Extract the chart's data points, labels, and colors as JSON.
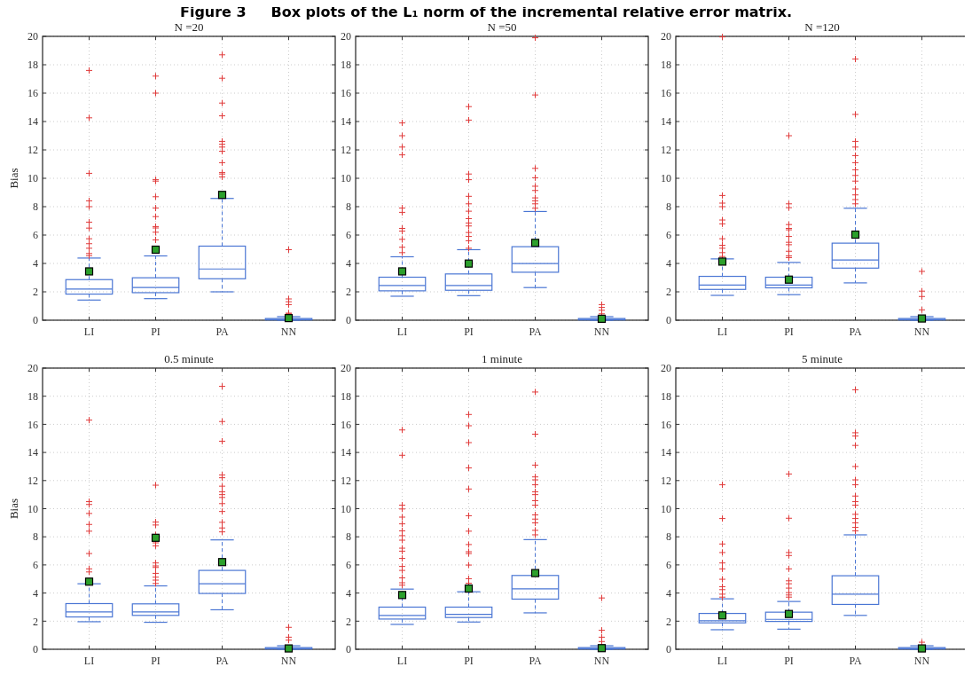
{
  "chart_data": [
    {
      "type": "box",
      "title": "N =20",
      "ylabel": "Bias",
      "annotations": [
        "Figure 3     Box plots of the L₁ norm of the incremental relative error matrix."
      ],
      "categories": [
        "LI",
        "PI",
        "PA",
        "NN"
      ],
      "ylim": [
        0,
        20
      ],
      "yticks": [
        0,
        2,
        4,
        6,
        8,
        10,
        12,
        14,
        16,
        18,
        20
      ],
      "grid": true,
      "marker": "cross",
      "series": [
        {
          "color": "#4a76d4",
          "boxes": [
            {
              "low": 1.42,
              "q1": 1.84,
              "median": 2.19,
              "q3": 2.86,
              "high": 4.38,
              "mean": 3.44,
              "outliers": [
                17.6,
                14.26,
                10.35,
                8.41,
                8.0,
                6.91,
                6.49,
                5.74,
                5.39,
                5.07,
                4.7,
                4.55
              ]
            },
            {
              "low": 1.52,
              "q1": 1.94,
              "median": 2.3,
              "q3": 2.99,
              "high": 4.53,
              "mean": 4.97,
              "outliers": [
                17.2,
                16.0,
                9.9,
                9.8,
                8.7,
                7.9,
                7.3,
                6.6,
                6.5,
                6.2,
                5.66
              ]
            },
            {
              "low": 2.0,
              "q1": 2.92,
              "median": 3.61,
              "q3": 5.22,
              "high": 8.58,
              "mean": 8.83,
              "outliers": [
                18.7,
                17.05,
                15.3,
                14.4,
                12.6,
                12.4,
                12.2,
                11.9,
                11.1,
                10.4,
                10.3,
                10.1
              ]
            },
            {
              "low": 0,
              "q1": 0.02,
              "median": 0.05,
              "q3": 0.12,
              "high": 0.25,
              "mean": 0.15,
              "outliers": [
                4.97,
                1.5,
                1.3,
                1.1,
                0.5,
                0.45
              ]
            }
          ]
        }
      ]
    },
    {
      "type": "box",
      "title": "N =50",
      "categories": [
        "LI",
        "PI",
        "PA",
        "NN"
      ],
      "ylim": [
        0,
        20
      ],
      "yticks": [
        0,
        2,
        4,
        6,
        8,
        10,
        12,
        14,
        16,
        18,
        20
      ],
      "grid": true,
      "marker": "cross",
      "series": [
        {
          "color": "#4a76d4",
          "boxes": [
            {
              "low": 1.69,
              "q1": 2.07,
              "median": 2.44,
              "q3": 3.03,
              "high": 4.47,
              "mean": 3.44,
              "outliers": [
                13.9,
                13.0,
                12.2,
                11.65,
                7.9,
                7.6,
                6.47,
                6.28,
                5.7,
                5.14,
                4.76
              ]
            },
            {
              "low": 1.73,
              "q1": 2.11,
              "median": 2.44,
              "q3": 3.26,
              "high": 4.97,
              "mean": 3.99,
              "outliers": [
                15.05,
                14.1,
                10.3,
                9.9,
                8.73,
                8.2,
                7.68,
                7.16,
                6.85,
                6.64,
                6.18,
                5.9,
                5.6,
                5.07
              ]
            },
            {
              "low": 2.3,
              "q1": 3.38,
              "median": 3.99,
              "q3": 5.18,
              "high": 7.66,
              "mean": 5.45,
              "outliers": [
                19.9,
                15.87,
                10.7,
                10.04,
                9.44,
                9.14,
                8.62,
                8.41,
                8.2,
                7.89
              ]
            },
            {
              "low": 0,
              "q1": 0.02,
              "median": 0.05,
              "q3": 0.12,
              "high": 0.25,
              "mean": 0.1,
              "outliers": [
                1.1,
                0.9,
                0.7,
                0.45
              ]
            }
          ]
        }
      ]
    },
    {
      "type": "box",
      "title": "N =120",
      "categories": [
        "LI",
        "PI",
        "PA",
        "NN"
      ],
      "ylim": [
        0,
        20
      ],
      "yticks": [
        0,
        2,
        4,
        6,
        8,
        10,
        12,
        14,
        16,
        18,
        20
      ],
      "grid": true,
      "marker": "cross",
      "series": [
        {
          "color": "#4a76d4",
          "boxes": [
            {
              "low": 1.75,
              "q1": 2.17,
              "median": 2.48,
              "q3": 3.09,
              "high": 4.32,
              "mean": 4.13,
              "outliers": [
                19.96,
                8.79,
                8.25,
                8.0,
                7.06,
                6.79,
                5.74,
                5.28,
                5.07,
                4.76,
                4.49
              ]
            },
            {
              "low": 1.8,
              "q1": 2.28,
              "median": 2.48,
              "q3": 3.03,
              "high": 4.07,
              "mean": 2.86,
              "outliers": [
                13.0,
                8.2,
                7.93,
                6.74,
                6.47,
                6.37,
                5.9,
                5.49,
                5.32,
                4.86,
                4.53,
                4.41
              ]
            },
            {
              "low": 2.63,
              "q1": 3.67,
              "median": 4.24,
              "q3": 5.43,
              "high": 7.89,
              "mean": 6.03,
              "outliers": [
                18.4,
                14.5,
                12.6,
                12.2,
                11.6,
                11.1,
                10.6,
                10.2,
                9.8,
                9.25,
                8.83,
                8.5,
                8.2
              ]
            },
            {
              "low": 0,
              "q1": 0.02,
              "median": 0.05,
              "q3": 0.12,
              "high": 0.25,
              "mean": 0.12,
              "outliers": [
                3.44,
                2.05,
                1.67,
                0.73
              ]
            }
          ]
        }
      ]
    },
    {
      "type": "box",
      "title": "0.5 minute",
      "ylabel": "Bias",
      "categories": [
        "LI",
        "PI",
        "PA",
        "NN"
      ],
      "ylim": [
        0,
        20
      ],
      "yticks": [
        0,
        2,
        4,
        6,
        8,
        10,
        12,
        14,
        16,
        18,
        20
      ],
      "grid": true,
      "marker": "cross",
      "series": [
        {
          "color": "#4a76d4",
          "boxes": [
            {
              "low": 1.96,
              "q1": 2.3,
              "median": 2.66,
              "q3": 3.25,
              "high": 4.66,
              "mean": 4.81,
              "outliers": [
                16.3,
                10.5,
                10.3,
                9.66,
                8.88,
                8.4,
                6.81,
                5.72,
                5.5
              ]
            },
            {
              "low": 1.92,
              "q1": 2.41,
              "median": 2.66,
              "q3": 3.23,
              "high": 4.51,
              "mean": 7.93,
              "outliers": [
                11.67,
                9.05,
                8.84,
                8.14,
                7.57,
                7.36,
                6.14,
                5.93,
                5.82,
                5.4,
                5.13,
                4.92,
                4.68
              ]
            },
            {
              "low": 2.81,
              "q1": 3.97,
              "median": 4.66,
              "q3": 5.61,
              "high": 7.78,
              "mean": 6.2,
              "outliers": [
                18.7,
                16.2,
                14.8,
                12.4,
                12.2,
                11.6,
                11.2,
                11.0,
                10.8,
                10.36,
                9.8,
                9.03,
                8.63,
                8.35
              ]
            },
            {
              "low": 0,
              "q1": 0.02,
              "median": 0.05,
              "q3": 0.12,
              "high": 0.25,
              "mean": 0.06,
              "outliers": [
                1.56,
                0.86,
                0.65
              ]
            }
          ]
        }
      ]
    },
    {
      "type": "box",
      "title": "1 minute",
      "categories": [
        "LI",
        "PI",
        "PA",
        "NN"
      ],
      "ylim": [
        0,
        20
      ],
      "yticks": [
        0,
        2,
        4,
        6,
        8,
        10,
        12,
        14,
        16,
        18,
        20
      ],
      "grid": true,
      "marker": "cross",
      "series": [
        {
          "color": "#4a76d4",
          "boxes": [
            {
              "low": 1.77,
              "q1": 2.15,
              "median": 2.4,
              "q3": 3.0,
              "high": 4.28,
              "mean": 3.86,
              "outliers": [
                15.6,
                13.8,
                10.25,
                9.98,
                9.4,
                8.92,
                8.42,
                8.08,
                7.76,
                7.19,
                6.98,
                6.46,
                5.89,
                5.61,
                5.08,
                4.73,
                4.56
              ]
            },
            {
              "low": 1.94,
              "q1": 2.26,
              "median": 2.49,
              "q3": 3.0,
              "high": 4.09,
              "mean": 4.32,
              "outliers": [
                16.7,
                15.9,
                14.7,
                12.9,
                11.4,
                9.5,
                8.4,
                7.45,
                6.94,
                6.81,
                5.99,
                5.02,
                4.7
              ]
            },
            {
              "low": 2.59,
              "q1": 3.57,
              "median": 4.3,
              "q3": 5.25,
              "high": 7.8,
              "mean": 5.42,
              "outliers": [
                18.3,
                15.3,
                13.1,
                12.26,
                12.05,
                11.7,
                11.2,
                11.0,
                10.57,
                10.25,
                9.56,
                9.26,
                8.99,
                8.46,
                8.14
              ]
            },
            {
              "low": 0,
              "q1": 0.02,
              "median": 0.05,
              "q3": 0.12,
              "high": 0.25,
              "mean": 0.08,
              "outliers": [
                3.65,
                1.35,
                0.86,
                0.55
              ]
            }
          ]
        }
      ]
    },
    {
      "type": "box",
      "title": "5 minute",
      "categories": [
        "LI",
        "PI",
        "PA",
        "NN"
      ],
      "ylim": [
        0,
        20
      ],
      "yticks": [
        0,
        2,
        4,
        6,
        8,
        10,
        12,
        14,
        16,
        18,
        20
      ],
      "grid": true,
      "marker": "cross",
      "series": [
        {
          "color": "#4a76d4",
          "boxes": [
            {
              "low": 1.39,
              "q1": 1.88,
              "median": 2.03,
              "q3": 2.55,
              "high": 3.59,
              "mean": 2.41,
              "outliers": [
                11.7,
                9.3,
                7.49,
                6.88,
                6.14,
                5.72,
                4.98,
                4.45,
                4.24,
                3.92,
                3.71
              ]
            },
            {
              "low": 1.43,
              "q1": 1.98,
              "median": 2.13,
              "q3": 2.64,
              "high": 3.4,
              "mean": 2.51,
              "outliers": [
                12.47,
                9.32,
                6.88,
                6.67,
                5.72,
                4.87,
                4.66,
                4.35,
                4.03,
                3.86,
                3.71
              ]
            },
            {
              "low": 2.41,
              "q1": 3.19,
              "median": 3.92,
              "q3": 5.23,
              "high": 8.14,
              "outliers": [
                18.46,
                15.4,
                15.17,
                14.5,
                13.0,
                12.05,
                11.7,
                10.9,
                10.5,
                10.25,
                9.6,
                9.3,
                8.99,
                8.67,
                8.42
              ]
            },
            {
              "low": 0,
              "q1": 0.02,
              "median": 0.05,
              "q3": 0.12,
              "high": 0.25,
              "mean": 0.06,
              "outliers": [
                0.5
              ]
            }
          ]
        }
      ]
    }
  ]
}
